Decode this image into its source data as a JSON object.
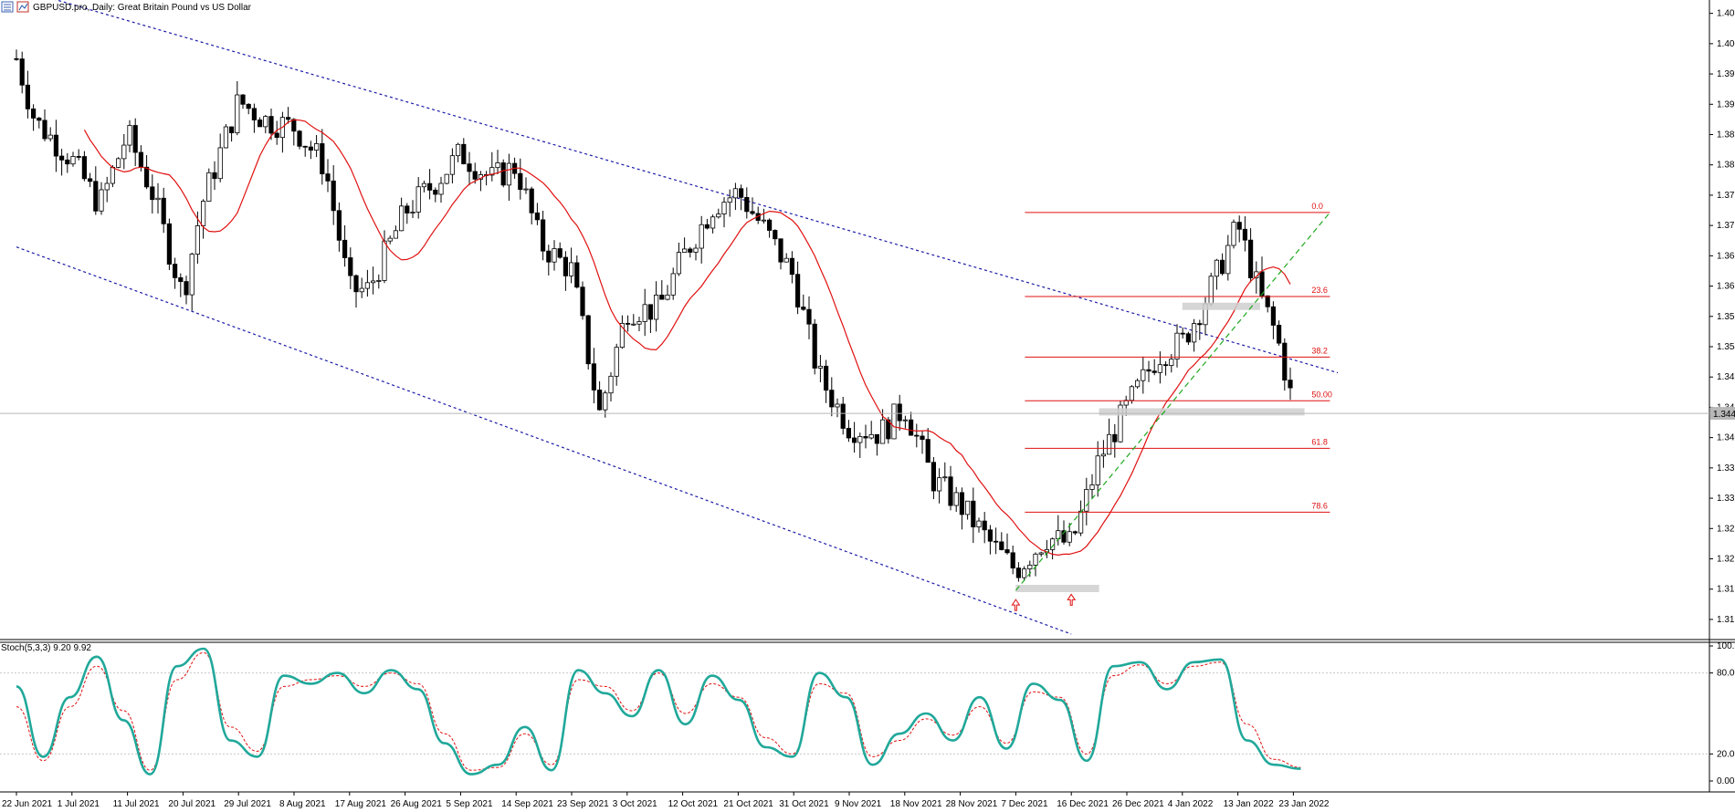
{
  "header": {
    "symbol": "GBPUSD.pro",
    "timeframe": "Daily",
    "description": "Great Britain Pound vs US Dollar",
    "icons": [
      "list-icon",
      "chart-window-icon"
    ]
  },
  "chart_data": [
    {
      "type": "candlestick",
      "title": "GBPUSD.pro, Daily:  Great Britain Pound vs US Dollar",
      "y_ticks": [
        1.40545,
        1.4008,
        1.39615,
        1.3915,
        1.38685,
        1.3822,
        1.37755,
        1.3729,
        1.36825,
        1.3636,
        1.35895,
        1.3543,
        1.34965,
        1.345,
        1.34035,
        1.3357,
        1.33105,
        1.3264,
        1.32175,
        1.3171,
        1.31245
      ],
      "y_tick_labels": [
        "1.40545",
        "1.40080",
        "1.39615",
        "1.39150",
        "1.38685",
        "1.38220",
        "1.37755",
        "1.37290",
        "1.36825",
        "1.36360",
        "1.35895",
        "1.35430",
        "1.34965",
        "1.34500",
        "1.34035",
        "1.33570",
        "1.33105",
        "1.32640",
        "1.32175",
        "1.31710",
        "1.31245"
      ],
      "current_price_label": "1.34407",
      "current_price": 1.34407,
      "ylim": [
        1.3095,
        1.4075
      ],
      "x_tick_labels": [
        "22 Jun 2021",
        "1 Jul 2021",
        "11 Jul 2021",
        "20 Jul 2021",
        "29 Jul 2021",
        "8 Aug 2021",
        "17 Aug 2021",
        "26 Aug 2021",
        "5 Sep 2021",
        "14 Sep 2021",
        "23 Sep 2021",
        "3 Oct 2021",
        "12 Oct 2021",
        "21 Oct 2021",
        "31 Oct 2021",
        "9 Nov 2021",
        "18 Nov 2021",
        "28 Nov 2021",
        "7 Dec 2021",
        "16 Dec 2021",
        "26 Dec 2021",
        "4 Jan 2022",
        "13 Jan 2022",
        "23 Jan 2022"
      ],
      "close_path": [
        {
          "t": "22 Jun 2021",
          "v": 1.3985
        },
        {
          "t": "25 Jun 2021",
          "v": 1.389
        },
        {
          "t": "1 Jul 2021",
          "v": 1.383
        },
        {
          "t": "6 Jul 2021",
          "v": 1.376
        },
        {
          "t": "11 Jul 2021",
          "v": 1.387
        },
        {
          "t": "15 Jul 2021",
          "v": 1.378
        },
        {
          "t": "20 Jul 2021",
          "v": 1.362
        },
        {
          "t": "23 Jul 2021",
          "v": 1.376
        },
        {
          "t": "29 Jul 2021",
          "v": 1.392
        },
        {
          "t": "3 Aug 2021",
          "v": 1.389
        },
        {
          "t": "8 Aug 2021",
          "v": 1.388
        },
        {
          "t": "13 Aug 2021",
          "v": 1.382
        },
        {
          "t": "17 Aug 2021",
          "v": 1.363
        },
        {
          "t": "20 Aug 2021",
          "v": 1.363
        },
        {
          "t": "26 Aug 2021",
          "v": 1.375
        },
        {
          "t": "1 Sep 2021",
          "v": 1.38
        },
        {
          "t": "5 Sep 2021",
          "v": 1.384
        },
        {
          "t": "10 Sep 2021",
          "v": 1.38
        },
        {
          "t": "14 Sep 2021",
          "v": 1.382
        },
        {
          "t": "18 Sep 2021",
          "v": 1.37
        },
        {
          "t": "23 Sep 2021",
          "v": 1.366
        },
        {
          "t": "28 Sep 2021",
          "v": 1.344
        },
        {
          "t": "3 Oct 2021",
          "v": 1.36
        },
        {
          "t": "8 Oct 2021",
          "v": 1.36
        },
        {
          "t": "12 Oct 2021",
          "v": 1.368
        },
        {
          "t": "17 Oct 2021",
          "v": 1.376
        },
        {
          "t": "21 Oct 2021",
          "v": 1.378
        },
        {
          "t": "26 Oct 2021",
          "v": 1.372
        },
        {
          "t": "31 Oct 2021",
          "v": 1.365
        },
        {
          "t": "4 Nov 2021",
          "v": 1.35
        },
        {
          "t": "9 Nov 2021",
          "v": 1.342
        },
        {
          "t": "14 Nov 2021",
          "v": 1.341
        },
        {
          "t": "18 Nov 2021",
          "v": 1.345
        },
        {
          "t": "23 Nov 2021",
          "v": 1.334
        },
        {
          "t": "28 Nov 2021",
          "v": 1.33
        },
        {
          "t": "3 Dec 2021",
          "v": 1.324
        },
        {
          "t": "7 Dec 2021",
          "v": 1.32
        },
        {
          "t": "12 Dec 2021",
          "v": 1.325
        },
        {
          "t": "16 Dec 2021",
          "v": 1.324
        },
        {
          "t": "21 Dec 2021",
          "v": 1.337
        },
        {
          "t": "26 Dec 2021",
          "v": 1.345
        },
        {
          "t": "31 Dec 2021",
          "v": 1.353
        },
        {
          "t": "4 Jan 2022",
          "v": 1.355
        },
        {
          "t": "8 Jan 2022",
          "v": 1.362
        },
        {
          "t": "13 Jan 2022",
          "v": 1.373
        },
        {
          "t": "17 Jan 2022",
          "v": 1.362
        },
        {
          "t": "20 Jan 2022",
          "v": 1.356
        },
        {
          "t": "23 Jan 2022",
          "v": 1.345
        }
      ],
      "fibonacci_levels": [
        {
          "label": "0.0",
          "price": 1.3749
        },
        {
          "label": "23.6",
          "price": 1.362
        },
        {
          "label": "38.2",
          "price": 1.3527
        },
        {
          "label": "50.00",
          "price": 1.346
        },
        {
          "label": "61.8",
          "price": 1.3387
        },
        {
          "label": "78.6",
          "price": 1.3289
        }
      ],
      "channel_lines": [
        {
          "from": {
            "t": "22 Jun 2021",
            "v": 1.4093
          },
          "to": {
            "t": "31 Jan 2022",
            "v": 1.3503
          }
        },
        {
          "from": {
            "t": "22 Jun 2021",
            "v": 1.3696
          },
          "to": {
            "t": "16 Dec 2021",
            "v": 1.3102
          }
        }
      ],
      "support_zones": [
        {
          "from": "4 Jan 2022",
          "to": "17 Jan 2022",
          "price": 1.3605
        },
        {
          "from": "21 Dec 2021",
          "to": "25 Jan 2022",
          "price": 1.3443
        },
        {
          "from": "7 Dec 2021",
          "to": "21 Dec 2021",
          "price": 1.3172
        }
      ],
      "colors": {
        "fib": "#e01010",
        "moving_average": "#e01010",
        "channel": "#1a1aa8",
        "trend": "#1fa81f",
        "zone": "#cfcfcf",
        "candle": "#000000"
      }
    },
    {
      "type": "line",
      "title": "Stoch(5,3,3) 9.20 9.92",
      "y_tick_labels": [
        "100.00",
        "80.00",
        "20.00",
        "0.00"
      ],
      "y_ticks": [
        100,
        80,
        20,
        0
      ],
      "levels": [
        80,
        20
      ],
      "ylim": [
        0,
        100
      ],
      "series": [
        {
          "values": [
            70,
            18,
            62,
            92,
            45,
            5,
            85,
            98,
            30,
            18,
            78,
            72,
            80,
            65,
            82,
            68,
            28,
            5,
            12,
            40,
            8,
            82,
            65,
            48,
            82,
            42,
            78,
            60,
            25,
            18,
            80,
            62,
            12,
            35,
            50,
            30,
            62,
            24,
            72,
            60,
            15,
            85,
            88,
            68,
            88,
            90,
            30,
            12,
            9
          ]
        },
        {
          "values": [
            55,
            15,
            55,
            85,
            52,
            8,
            75,
            95,
            40,
            22,
            70,
            75,
            78,
            70,
            80,
            72,
            35,
            8,
            10,
            35,
            12,
            75,
            70,
            52,
            80,
            50,
            72,
            62,
            32,
            20,
            72,
            65,
            18,
            30,
            46,
            34,
            55,
            28,
            66,
            62,
            20,
            78,
            86,
            72,
            85,
            88,
            42,
            16,
            10
          ]
        }
      ],
      "colors": {
        "main": "#20a89a",
        "signal": "#e01010"
      }
    }
  ]
}
